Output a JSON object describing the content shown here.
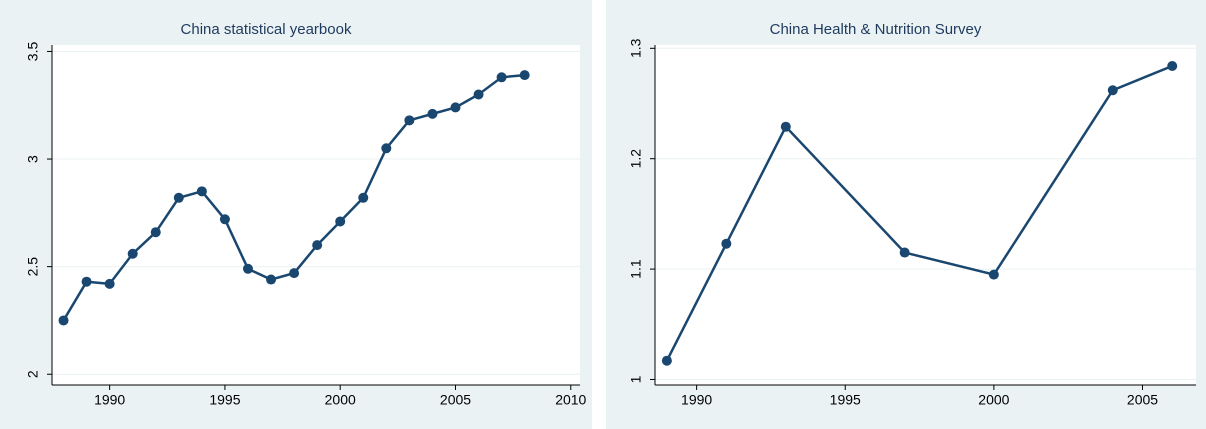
{
  "chart_data": [
    {
      "type": "line",
      "title": "China statistical yearbook",
      "x": [
        1988,
        1989,
        1990,
        1991,
        1992,
        1993,
        1994,
        1995,
        1996,
        1997,
        1998,
        1999,
        2000,
        2001,
        2002,
        2003,
        2004,
        2005,
        2006,
        2007,
        2008
      ],
      "values": [
        2.25,
        2.43,
        2.42,
        2.56,
        2.66,
        2.82,
        2.85,
        2.72,
        2.49,
        2.44,
        2.47,
        2.6,
        2.71,
        2.82,
        3.05,
        3.18,
        3.21,
        3.24,
        3.3,
        3.38,
        3.39
      ],
      "color": "#1a476f",
      "xlim": [
        1987.5,
        2010.4
      ],
      "xticks": [
        1990,
        1995,
        2000,
        2005,
        2010
      ],
      "ylim": [
        1.95,
        3.53
      ],
      "yticks": [
        2,
        2.5,
        3,
        3.5
      ],
      "grid": true
    },
    {
      "type": "line",
      "title": "China Health & Nutrition Survey",
      "x": [
        1989,
        1991,
        1993,
        1997,
        2000,
        2004,
        2006
      ],
      "values": [
        1.017,
        1.123,
        1.229,
        1.115,
        1.095,
        1.262,
        1.284
      ],
      "color": "#1a476f",
      "xlim": [
        1988.6,
        2006.8
      ],
      "xticks": [
        1990,
        1995,
        2000,
        2005
      ],
      "ylim": [
        0.995,
        1.303
      ],
      "yticks": [
        1,
        1.1,
        1.2,
        1.3
      ],
      "grid": true
    }
  ]
}
